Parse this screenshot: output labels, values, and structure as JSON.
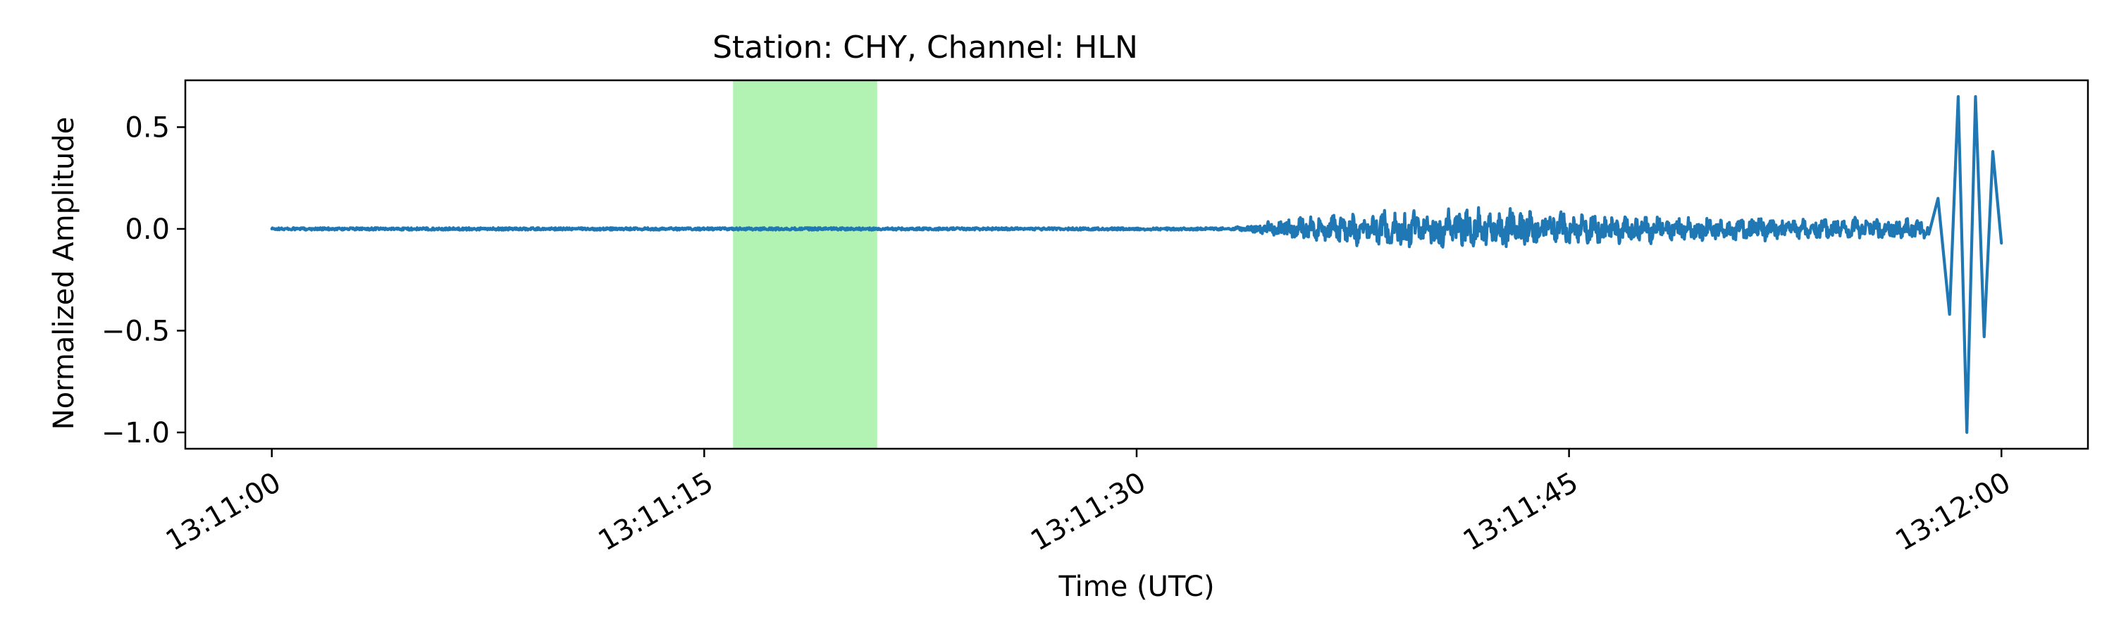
{
  "chart_data": {
    "type": "line",
    "title": "Station: CHY, Channel: HLN",
    "xlabel": "Time (UTC)",
    "ylabel": "Normalized Amplitude",
    "x_ticks": [
      "13:11:00",
      "13:11:15",
      "13:11:30",
      "13:11:45",
      "13:12:00"
    ],
    "x_tick_values": [
      0,
      15,
      30,
      45,
      60
    ],
    "xlim": [
      -3,
      63
    ],
    "y_ticks": [
      "0.5",
      "0.0",
      "−0.5",
      "−1.0"
    ],
    "y_tick_values": [
      0.5,
      0.0,
      -0.5,
      -1.0
    ],
    "ylim": [
      -1.08,
      0.73
    ],
    "grid": false,
    "highlight_span": {
      "start": 16,
      "end": 21,
      "color": "#b2f2b2"
    },
    "series": [
      {
        "color": "#1f77b4",
        "description_points": [
          [
            0,
            0.0
          ],
          [
            33,
            0.0
          ],
          [
            34,
            0.01
          ],
          [
            36,
            -0.05
          ],
          [
            38,
            0.08
          ],
          [
            40,
            -0.09
          ],
          [
            42,
            0.1
          ],
          [
            44,
            -0.08
          ],
          [
            46,
            0.07
          ],
          [
            48,
            -0.06
          ],
          [
            50,
            0.05
          ],
          [
            52,
            -0.05
          ],
          [
            54,
            0.04
          ],
          [
            56,
            -0.04
          ],
          [
            57.8,
            0.15
          ],
          [
            58.2,
            -0.42
          ],
          [
            58.5,
            0.65
          ],
          [
            58.8,
            -1.0
          ],
          [
            59.1,
            0.65
          ],
          [
            59.4,
            -0.53
          ],
          [
            59.7,
            0.38
          ],
          [
            60,
            -0.07
          ]
        ]
      }
    ]
  }
}
